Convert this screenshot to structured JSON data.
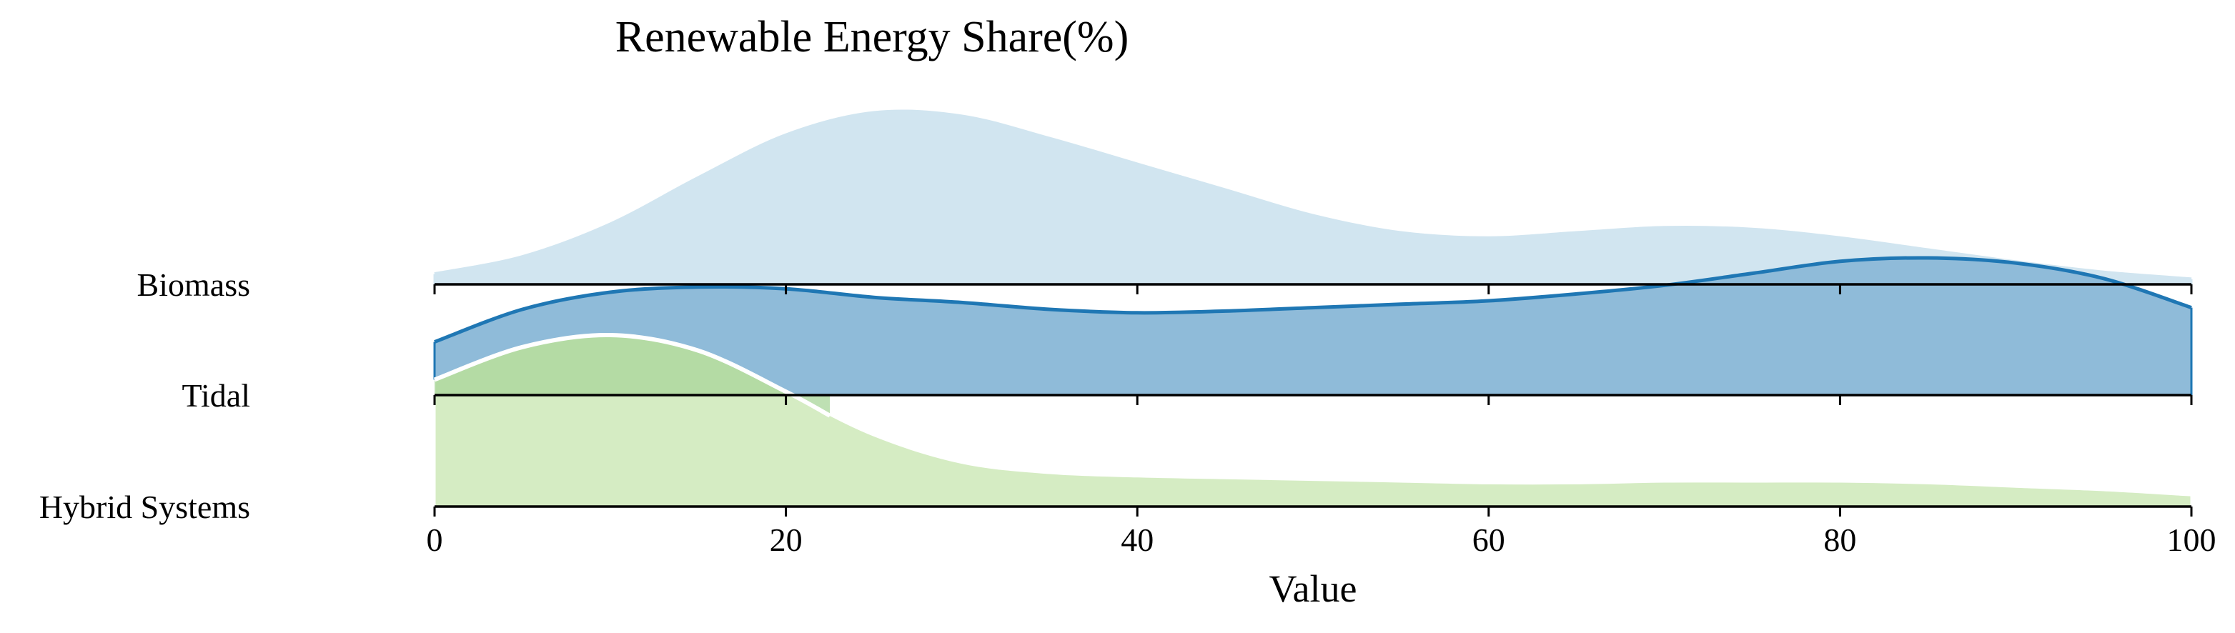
{
  "chart_data": {
    "type": "area",
    "subtype": "ridgeline",
    "title": "Renewable Energy Share(%)",
    "xlabel": "Value",
    "ylabel": "",
    "xlim": [
      0,
      100
    ],
    "xticks": [
      0,
      20,
      40,
      60,
      80,
      100
    ],
    "grid": false,
    "legend": "none",
    "x": [
      0,
      5,
      10,
      15,
      20,
      25,
      30,
      35,
      40,
      45,
      50,
      55,
      60,
      65,
      70,
      75,
      80,
      85,
      90,
      95,
      100
    ],
    "series": [
      {
        "name": "Biomass",
        "color": "#d1e5f0",
        "stroke": "#d1e5f0",
        "values": [
          0.06,
          0.16,
          0.35,
          0.62,
          0.87,
          1.0,
          0.98,
          0.85,
          0.7,
          0.55,
          0.4,
          0.3,
          0.27,
          0.3,
          0.33,
          0.32,
          0.27,
          0.2,
          0.13,
          0.07,
          0.03
        ]
      },
      {
        "name": "Tidal",
        "color": "#8fbbd9",
        "stroke": "#1f77b4",
        "values": [
          0.31,
          0.5,
          0.6,
          0.63,
          0.62,
          0.57,
          0.54,
          0.5,
          0.48,
          0.49,
          0.51,
          0.53,
          0.55,
          0.59,
          0.64,
          0.71,
          0.78,
          0.8,
          0.77,
          0.68,
          0.51
        ]
      },
      {
        "name": "Hybrid Systems",
        "color": "#d5ecc3",
        "stroke": "#ffffff",
        "values": [
          0.74,
          0.93,
          1.0,
          0.91,
          0.67,
          0.42,
          0.26,
          0.2,
          0.18,
          0.17,
          0.16,
          0.15,
          0.14,
          0.14,
          0.15,
          0.15,
          0.15,
          0.14,
          0.12,
          0.1,
          0.07
        ]
      }
    ],
    "overlay": [
      {
        "name": "Hybrid Systems",
        "color": "#a8d69a",
        "x": [
          0,
          5,
          10,
          15,
          20,
          22.5
        ],
        "values": [
          0.74,
          0.93,
          1.0,
          0.91,
          0.67,
          0.53
        ]
      }
    ]
  }
}
